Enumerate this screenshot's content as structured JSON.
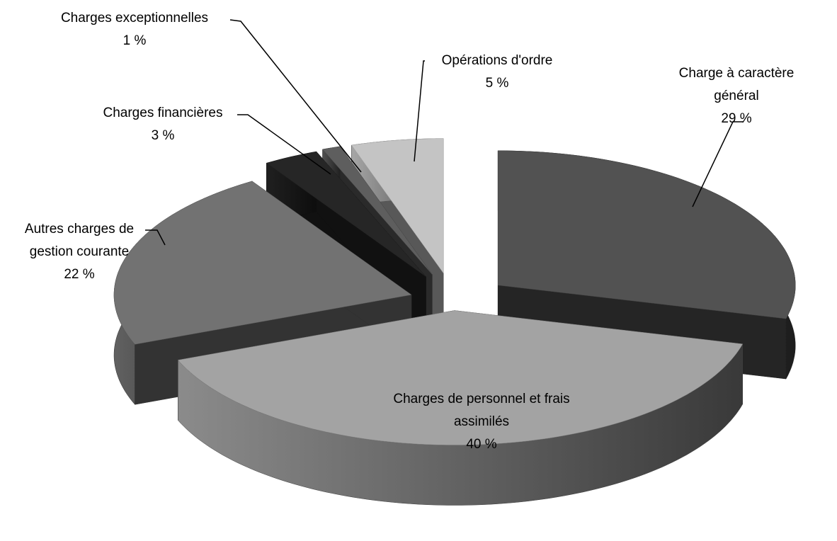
{
  "chart_data": {
    "type": "pie3d",
    "categories": [
      "Charge à caractère général",
      "Charges de personnel et frais assimilés",
      "Autres charges de gestion courante",
      "Charges financières",
      "Charges exceptionnelles",
      "Opérations d'ordre"
    ],
    "values": [
      29,
      40,
      22,
      3,
      1,
      5
    ],
    "value_labels": [
      "29 %",
      "40 %",
      "22 %",
      "3 %",
      "1 %",
      "5 %"
    ],
    "colors": [
      "#525252",
      "#a3a3a3",
      "#727272",
      "#262626",
      "#5e5e5e",
      "#c4c4c4"
    ]
  }
}
